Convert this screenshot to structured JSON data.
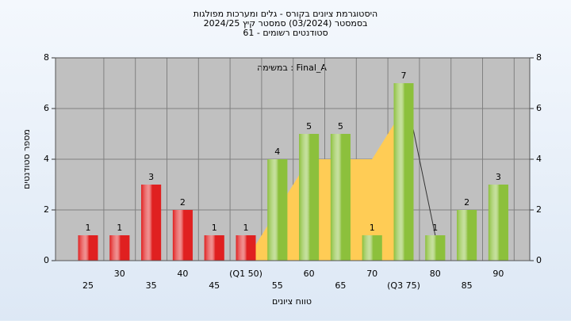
{
  "chart_data": {
    "type": "bar",
    "title": [
      "היסטוגרמת ציונים בקורס - גלים ומערכות מפולגות",
      "בסמסטר (03/2024) סמסטר קיץ 2024/25",
      "סטודנטים רשומים - 61"
    ],
    "annotation": "במשימה : Final_A",
    "x_label": "טווח ציונים",
    "y_label": "מספר סטודנטים",
    "categories": [
      "25",
      "30",
      "35",
      "40",
      "45",
      "(Q1 50)",
      "55",
      "60",
      "65",
      "70",
      "(Q3 75)",
      "80",
      "85",
      "90"
    ],
    "series": [
      {
        "values": [
          1,
          1,
          3,
          2,
          1,
          1,
          4,
          5,
          5,
          1,
          7,
          1,
          2,
          3
        ],
        "colors": [
          "#e02020",
          "#e02020",
          "#e02020",
          "#e02020",
          "#e02020",
          "#e02020",
          "#8cc03c",
          "#8cc03c",
          "#8cc03c",
          "#8cc03c",
          "#8cc03c",
          "#8cc03c",
          "#8cc03c",
          "#8cc03c"
        ]
      },
      {
        "type": "area",
        "color": "#ffcc55",
        "values": [
          null,
          null,
          null,
          null,
          null,
          0,
          2,
          4,
          4,
          4,
          6,
          null,
          null,
          null
        ]
      },
      {
        "type": "line",
        "color": "#333333",
        "values": [
          null,
          null,
          null,
          null,
          null,
          null,
          null,
          null,
          null,
          null,
          7,
          1,
          null,
          null
        ]
      }
    ],
    "ylim": [
      0,
      8
    ],
    "yticks": [
      0,
      2,
      4,
      6,
      8
    ],
    "grid": true
  }
}
